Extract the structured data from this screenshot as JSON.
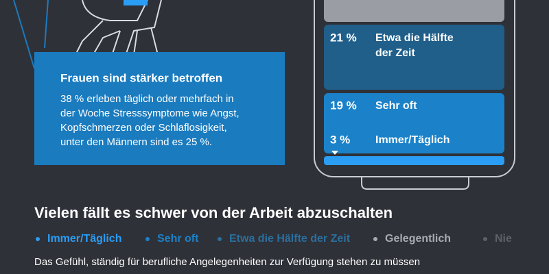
{
  "info_box": {
    "title": "Frauen sind stärker betroffen",
    "lines": [
      "38 % erleben täglich oder mehrfach in",
      "der Woche Stresssymptome wie Angst,",
      "Kopfschmerzen oder Schlaflosigkeit,",
      "unter den Männern sind es 25 %."
    ]
  },
  "phone": {
    "segments": [
      {
        "percent": "21 %",
        "label": [
          "Etwa die Hälfte",
          "der Zeit"
        ]
      },
      {
        "percent": "19 %",
        "label": [
          "Sehr oft"
        ]
      },
      {
        "percent": "3 %",
        "label": [
          "Immer/Täglich"
        ]
      }
    ]
  },
  "heading": "Vielen fällt es schwer von der Arbeit abzuschalten",
  "legend": [
    "Immer/Täglich",
    "Sehr oft",
    "Etwa die Hälfte der Zeit",
    "Gelegentlich",
    "Nie"
  ],
  "caption": "Das Gefühl, ständig für berufliche Angelegenheiten zur Verfügung stehen zu müssen"
}
